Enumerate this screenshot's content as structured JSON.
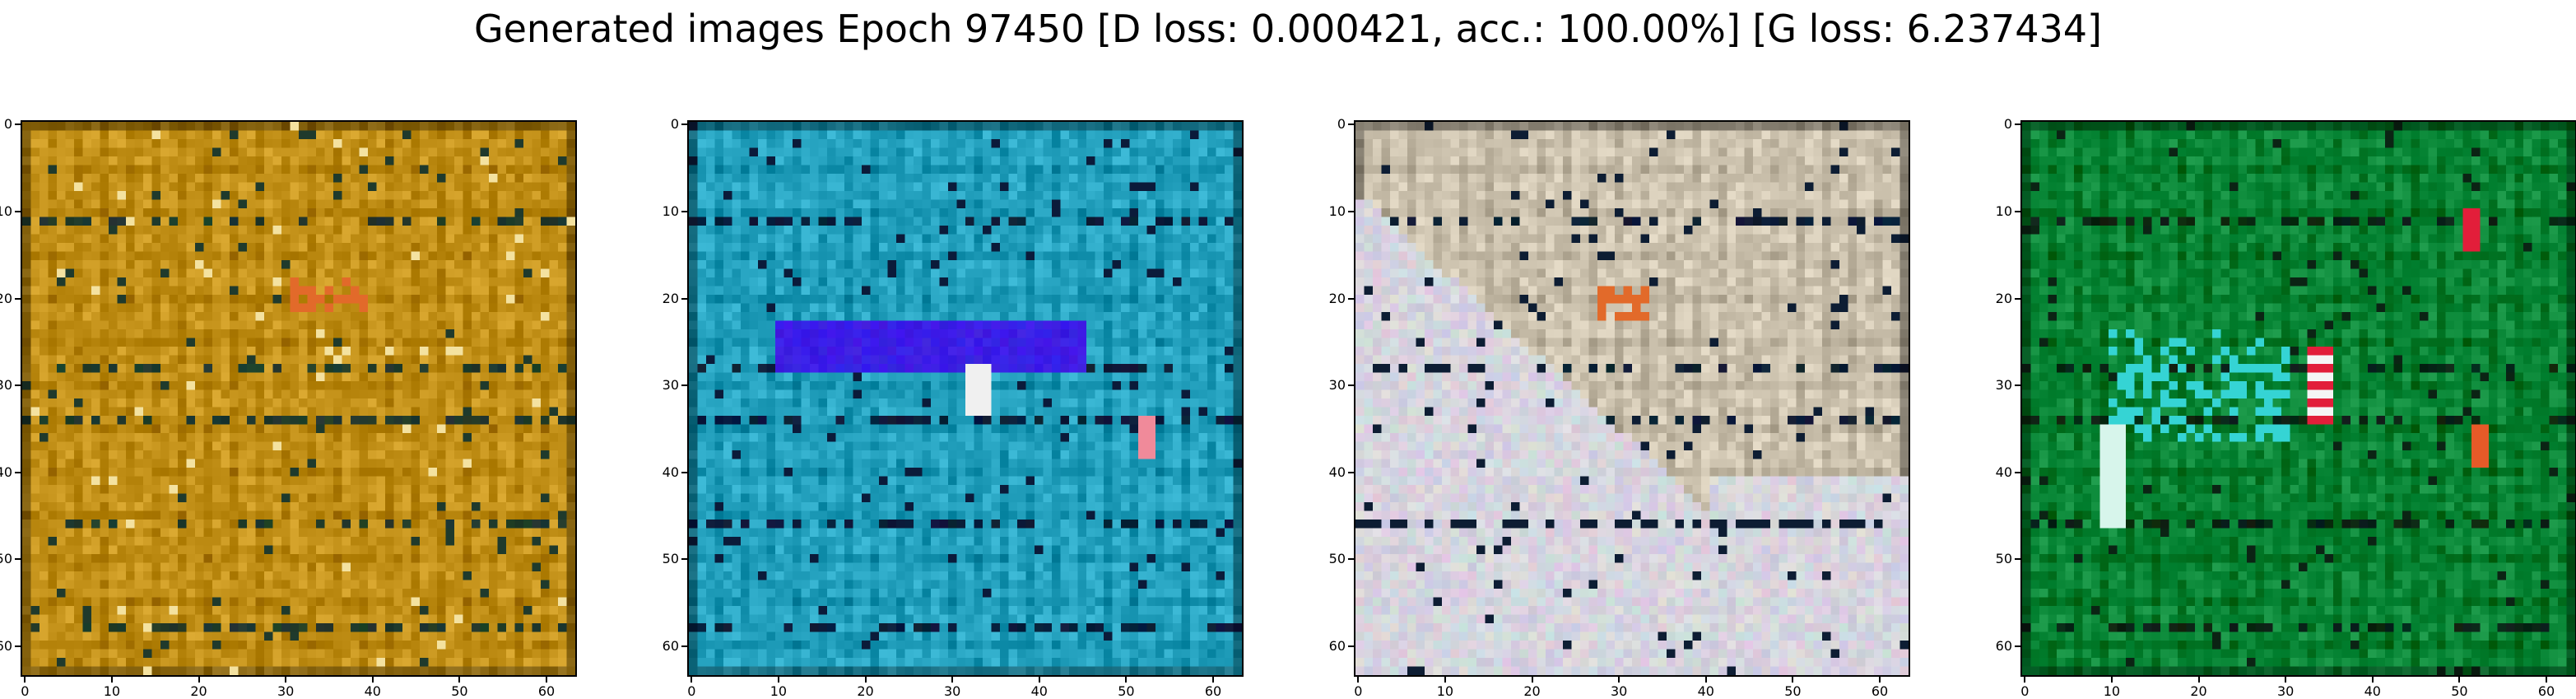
{
  "figure": {
    "title": "Generated images Epoch 97450 [D loss: 0.000421, acc.: 100.00%] [G loss: 6.237434]"
  },
  "axes": {
    "x_ticks": [
      "0",
      "10",
      "20",
      "30",
      "40",
      "50",
      "60"
    ],
    "y_ticks": [
      "0",
      "10",
      "20",
      "30",
      "40",
      "50",
      "60"
    ],
    "image_size": 64
  },
  "panels": [
    {
      "name": "generated-image-1",
      "dominant": "ochre-brown",
      "base_color": "#c8961e",
      "accent_colors": [
        "#1f3a2c",
        "#e26a2a",
        "#f4e2a0"
      ]
    },
    {
      "name": "generated-image-2",
      "dominant": "cyan",
      "base_color": "#2aa7c4",
      "accent_colors": [
        "#0b1b3a",
        "#3c1ee6",
        "#f08a9a"
      ]
    },
    {
      "name": "generated-image-3",
      "dominant": "white-ochre",
      "base_color": "#d2c8b4",
      "accent_colors": [
        "#0d1d33",
        "#e26a2a",
        "#c8961e"
      ]
    },
    {
      "name": "generated-image-4",
      "dominant": "green",
      "base_color": "#0c8a3a",
      "accent_colors": [
        "#0b2414",
        "#35d4d4",
        "#e21e3a"
      ]
    }
  ]
}
